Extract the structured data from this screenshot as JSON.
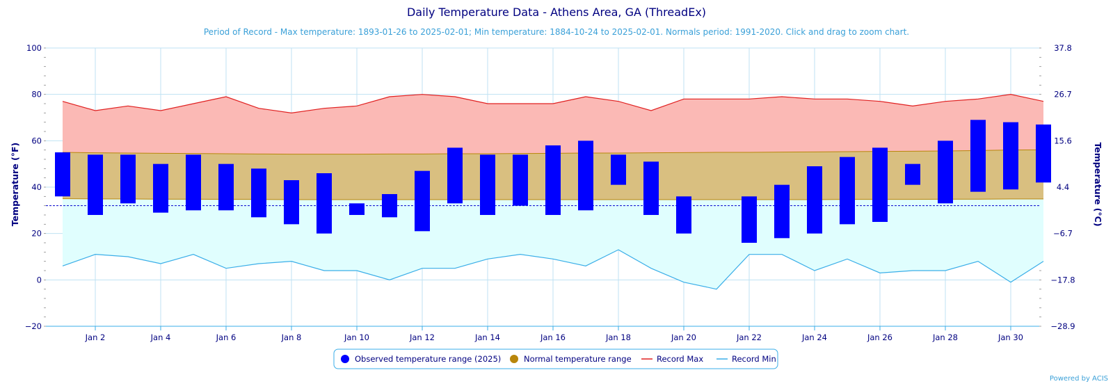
{
  "chart_data": {
    "type": "bar",
    "title": "Daily Temperature Data - Athens Area, GA (ThreadEx)",
    "subtitle": "Period of Record - Max temperature: 1893-01-26 to 2025-02-01; Min temperature: 1884-10-24 to 2025-02-01. Normals period: 1991-2020. Click and drag to zoom chart.",
    "ylabel": "Temperature (°F)",
    "ylabel_right": "Temperature (°C)",
    "ylim": [
      -20,
      100
    ],
    "yticks": [
      "100",
      "80",
      "60",
      "40",
      "20",
      "0",
      "−20"
    ],
    "yticks_right": [
      "37.8",
      "26.7",
      "15.6",
      "4.4",
      "−6.7",
      "−17.8",
      "−28.9"
    ],
    "xticks": [
      "Jan 2",
      "Jan 4",
      "Jan 6",
      "Jan 8",
      "Jan 10",
      "Jan 12",
      "Jan 14",
      "Jan 16",
      "Jan 18",
      "Jan 20",
      "Jan 22",
      "Jan 24",
      "Jan 26",
      "Jan 28",
      "Jan 30"
    ],
    "days": [
      1,
      2,
      3,
      4,
      5,
      6,
      7,
      8,
      9,
      10,
      11,
      12,
      13,
      14,
      15,
      16,
      17,
      18,
      19,
      20,
      21,
      22,
      23,
      24,
      25,
      26,
      27,
      28,
      29,
      30,
      31
    ],
    "observed_max": [
      55,
      54,
      54,
      50,
      54,
      50,
      48,
      43,
      46,
      33,
      37,
      47,
      57,
      54,
      54,
      58,
      60,
      54,
      51,
      36,
      null,
      36,
      41,
      49,
      53,
      57,
      50,
      60,
      69,
      68,
      67
    ],
    "observed_min": [
      36,
      28,
      33,
      29,
      30,
      30,
      27,
      24,
      20,
      28,
      27,
      21,
      33,
      28,
      32,
      28,
      30,
      41,
      28,
      20,
      null,
      16,
      18,
      20,
      24,
      25,
      41,
      33,
      38,
      39,
      42
    ],
    "normal_max": [
      55,
      54.8,
      54.7,
      54.6,
      54.5,
      54.4,
      54.3,
      54.2,
      54.2,
      54.2,
      54.3,
      54.3,
      54.4,
      54.4,
      54.5,
      54.6,
      54.7,
      54.7,
      54.8,
      54.9,
      55,
      55,
      55.1,
      55.2,
      55.3,
      55.4,
      55.5,
      55.6,
      55.8,
      56,
      56.1
    ],
    "normal_min": [
      35,
      34.9,
      34.9,
      34.8,
      34.8,
      34.7,
      34.7,
      34.6,
      34.6,
      34.6,
      34.6,
      34.6,
      34.6,
      34.6,
      34.6,
      34.6,
      34.6,
      34.6,
      34.6,
      34.6,
      34.6,
      34.6,
      34.6,
      34.6,
      34.7,
      34.7,
      34.7,
      34.8,
      34.8,
      34.9,
      34.9
    ],
    "record_max": [
      77,
      73,
      75,
      73,
      76,
      79,
      74,
      72,
      74,
      75,
      79,
      80,
      79,
      76,
      76,
      76,
      79,
      77,
      73,
      78,
      78,
      78,
      79,
      78,
      78,
      77,
      75,
      77,
      78,
      80,
      77
    ],
    "record_min": [
      6,
      11,
      10,
      7,
      11,
      5,
      7,
      8,
      4,
      4,
      0,
      5,
      5,
      9,
      11,
      9,
      6,
      13,
      5,
      -1,
      -4,
      11,
      11,
      4,
      9,
      3,
      4,
      4,
      8,
      -1,
      8
    ],
    "freezing_line": 32,
    "legend": [
      {
        "label": "Observed temperature range (2025)",
        "color": "#0000ff",
        "symbol": "circle"
      },
      {
        "label": "Normal temperature range",
        "color": "#b8860b",
        "symbol": "circle"
      },
      {
        "label": "Record Max",
        "color": "#e02020",
        "symbol": "line"
      },
      {
        "label": "Record Min",
        "color": "#3aaee8",
        "symbol": "line"
      }
    ],
    "legend_position": "bottom-center",
    "grid": true,
    "colors": {
      "observed": "#0000ff",
      "normal_fill": "#d9bf80",
      "normal_line": "#b8860b",
      "record_max_line": "#e02020",
      "record_max_fill": "#fbb9b5",
      "record_min_line": "#3aaee8",
      "record_min_fill": "#e0fefe",
      "grid": "#bfe2f3",
      "text": "#000080"
    }
  },
  "credit": "Powered by ACIS"
}
